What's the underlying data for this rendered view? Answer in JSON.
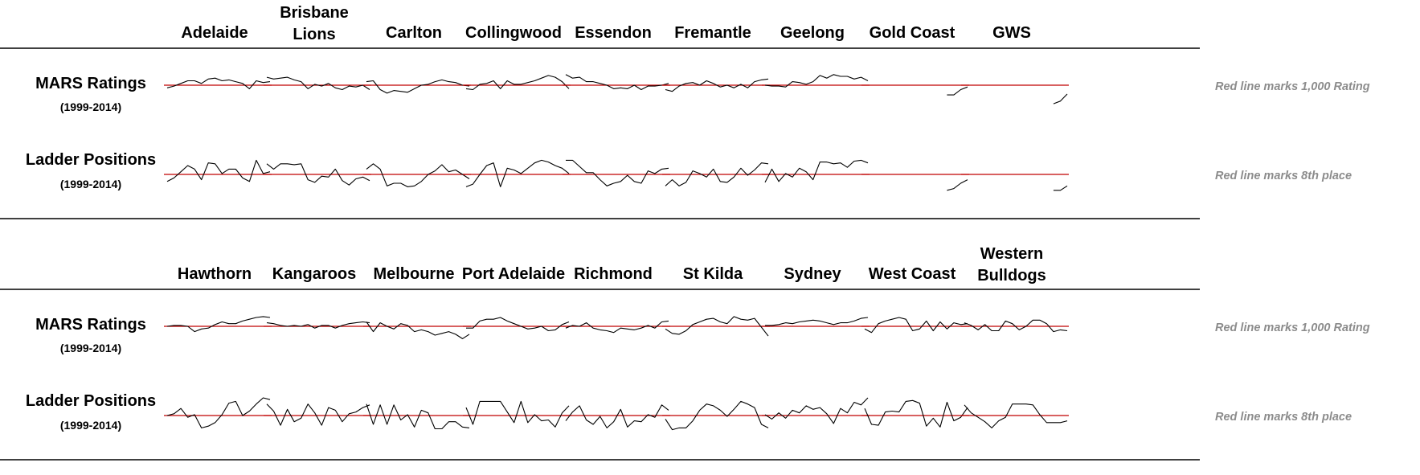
{
  "chart_data": {
    "type": "line",
    "years": [
      1999,
      2000,
      2001,
      2002,
      2003,
      2004,
      2005,
      2006,
      2007,
      2008,
      2009,
      2010,
      2011,
      2012,
      2013,
      2014
    ],
    "row_labels": {
      "mars": {
        "title": "MARS Ratings",
        "subtitle": "(1999-2014)"
      },
      "ladder": {
        "title": "Ladder Positions",
        "subtitle": "(1999-2014)"
      }
    },
    "notes": {
      "mars": "Red line marks 1,000 Rating",
      "ladder": "Red line marks 8th place"
    },
    "colors": {
      "line": "#000000",
      "reference": "#c00000",
      "rule": "#000000",
      "note": "#8c8c8c"
    },
    "panels": [
      {
        "teams": [
          {
            "name": [
              "Adelaide"
            ],
            "mars": [
              -0.3,
              -0.1,
              0.2,
              0.5,
              0.5,
              0.2,
              0.7,
              0.8,
              0.5,
              0.6,
              0.4,
              0.2,
              -0.4,
              0.5,
              0.3,
              0.4
            ],
            "ladder": [
              -0.8,
              -0.4,
              0.3,
              1.0,
              0.6,
              -0.6,
              1.3,
              1.2,
              0.1,
              0.6,
              0.6,
              -0.4,
              -0.8,
              1.6,
              0.1,
              0.3
            ]
          },
          {
            "name": [
              "Brisbane",
              "Lions"
            ],
            "mars": [
              0.9,
              0.7,
              0.8,
              0.9,
              0.6,
              0.4,
              -0.4,
              0.1,
              -0.1,
              0.2,
              -0.3,
              -0.5,
              -0.1,
              -0.2,
              0.0,
              -0.5
            ],
            "ladder": [
              1.2,
              0.6,
              1.2,
              1.2,
              1.1,
              1.2,
              -0.6,
              -0.9,
              -0.2,
              -0.3,
              0.6,
              -0.7,
              -1.2,
              -0.5,
              -0.3,
              -0.7
            ]
          },
          {
            "name": [
              "Carlton"
            ],
            "mars": [
              0.4,
              0.5,
              -0.5,
              -0.9,
              -0.6,
              -0.7,
              -0.8,
              -0.4,
              0.0,
              0.1,
              0.4,
              0.6,
              0.4,
              0.3,
              0.0,
              -0.1
            ],
            "ladder": [
              0.6,
              1.2,
              0.6,
              -1.3,
              -1.0,
              -1.0,
              -1.4,
              -1.3,
              -0.8,
              0.0,
              0.4,
              1.1,
              0.3,
              0.5,
              0.0,
              -0.5
            ]
          },
          {
            "name": [
              "Collingwood"
            ],
            "mars": [
              -0.4,
              -0.5,
              0.1,
              0.2,
              0.5,
              -0.4,
              0.5,
              0.1,
              0.1,
              0.3,
              0.5,
              0.8,
              1.1,
              0.9,
              0.4,
              -0.4
            ],
            "ladder": [
              -1.4,
              -1.1,
              0.0,
              1.0,
              1.3,
              -1.4,
              0.7,
              0.5,
              0.1,
              0.7,
              1.3,
              1.6,
              1.4,
              1.0,
              0.7,
              0.1
            ]
          },
          {
            "name": [
              "Essendon"
            ],
            "mars": [
              1.2,
              0.8,
              0.9,
              0.4,
              0.4,
              0.2,
              0.0,
              -0.4,
              -0.3,
              -0.4,
              0.0,
              -0.5,
              -0.1,
              -0.1,
              0.0,
              0.2
            ],
            "ladder": [
              1.6,
              1.6,
              0.9,
              0.2,
              0.2,
              -0.6,
              -1.3,
              -1.0,
              -0.8,
              -0.1,
              -0.8,
              -1.0,
              0.4,
              0.1,
              0.6,
              0.7
            ]
          },
          {
            "name": [
              "Fremantle"
            ],
            "mars": [
              -0.5,
              -0.7,
              -0.1,
              0.2,
              0.3,
              0.0,
              0.5,
              0.2,
              -0.2,
              0.0,
              -0.3,
              0.1,
              -0.3,
              0.4,
              0.6,
              0.7
            ],
            "ladder": [
              -1.3,
              -0.6,
              -1.3,
              -0.9,
              0.4,
              0.1,
              -0.3,
              0.6,
              -0.8,
              -0.9,
              -0.3,
              0.7,
              -0.1,
              0.5,
              1.3,
              1.2
            ]
          },
          {
            "name": [
              "Geelong"
            ],
            "mars": [
              0.0,
              -0.1,
              -0.1,
              -0.2,
              0.4,
              0.3,
              0.1,
              0.4,
              1.1,
              0.8,
              1.2,
              1.0,
              1.0,
              0.7,
              0.9,
              0.5
            ],
            "ladder": [
              -0.9,
              0.6,
              -0.8,
              0.1,
              -0.3,
              0.7,
              0.3,
              -0.6,
              1.4,
              1.4,
              1.2,
              1.3,
              0.8,
              1.5,
              1.6,
              1.3
            ]
          },
          {
            "name": [
              "Gold Coast"
            ],
            "mars": [
              null,
              null,
              null,
              null,
              null,
              null,
              null,
              null,
              null,
              null,
              null,
              null,
              -1.1,
              -1.1,
              -0.5,
              -0.2
            ],
            "ladder": [
              null,
              null,
              null,
              null,
              null,
              null,
              null,
              null,
              null,
              null,
              null,
              null,
              -1.8,
              -1.6,
              -1.0,
              -0.6
            ]
          },
          {
            "name": [
              "GWS"
            ],
            "mars": [
              null,
              null,
              null,
              null,
              null,
              null,
              null,
              null,
              null,
              null,
              null,
              null,
              null,
              -2.1,
              -1.8,
              -1.0
            ],
            "ladder": [
              null,
              null,
              null,
              null,
              null,
              null,
              null,
              null,
              null,
              null,
              null,
              null,
              null,
              -1.8,
              -1.8,
              -1.3
            ]
          }
        ]
      },
      {
        "teams": [
          {
            "name": [
              "Hawthorn"
            ],
            "mars": [
              0.0,
              0.1,
              0.1,
              0.0,
              -0.6,
              -0.3,
              -0.2,
              0.2,
              0.5,
              0.3,
              0.3,
              0.6,
              0.8,
              1.0,
              1.1,
              1.0
            ],
            "ladder": [
              0.0,
              0.2,
              0.8,
              -0.2,
              0.1,
              -1.4,
              -1.2,
              -0.8,
              0.1,
              1.4,
              1.6,
              0.0,
              0.5,
              1.3,
              2.0,
              1.8
            ]
          },
          {
            "name": [
              "Kangaroos"
            ],
            "mars": [
              0.4,
              0.3,
              0.1,
              0.0,
              0.1,
              0.0,
              0.2,
              -0.2,
              0.1,
              0.1,
              -0.2,
              0.1,
              0.3,
              0.4,
              0.5,
              0.4
            ],
            "ladder": [
              1.3,
              0.5,
              -1.1,
              0.7,
              -0.7,
              -0.3,
              1.3,
              0.3,
              -1.1,
              0.9,
              0.6,
              -0.7,
              0.2,
              0.4,
              0.9,
              1.2
            ]
          },
          {
            "name": [
              "Melbourne"
            ],
            "mars": [
              0.5,
              -0.6,
              0.4,
              0.0,
              -0.3,
              0.3,
              0.1,
              -0.6,
              -0.4,
              -0.6,
              -1.0,
              -0.8,
              -0.6,
              -0.9,
              -1.4,
              -0.9
            ],
            "ladder": [
              1.3,
              -1.0,
              1.2,
              -1.0,
              1.2,
              -0.5,
              0.1,
              -1.3,
              0.6,
              0.3,
              -1.5,
              -1.5,
              -0.7,
              -0.7,
              -1.3,
              -1.4
            ]
          },
          {
            "name": [
              "Port Adelaide"
            ],
            "mars": [
              -0.2,
              -0.2,
              0.6,
              0.8,
              0.8,
              1.0,
              0.6,
              0.3,
              0.0,
              -0.3,
              -0.2,
              0.0,
              -0.5,
              -0.4,
              0.2,
              0.5
            ],
            "ladder": [
              0.9,
              -1.0,
              1.6,
              1.6,
              1.6,
              1.6,
              0.4,
              -0.8,
              1.6,
              -0.8,
              0.1,
              -0.6,
              -0.5,
              -1.3,
              0.3,
              1.1
            ]
          },
          {
            "name": [
              "Richmond"
            ],
            "mars": [
              -0.2,
              0.1,
              0.0,
              0.4,
              -0.2,
              -0.4,
              -0.5,
              -0.7,
              -0.2,
              -0.3,
              -0.4,
              -0.2,
              0.1,
              -0.2,
              0.5,
              0.6
            ],
            "ladder": [
              -0.6,
              0.4,
              1.1,
              -0.5,
              -1.0,
              -0.1,
              -1.4,
              -0.7,
              0.7,
              -1.3,
              -0.6,
              -0.7,
              0.1,
              -0.2,
              1.2,
              0.6
            ]
          },
          {
            "name": [
              "St Kilda"
            ],
            "mars": [
              -0.3,
              -0.8,
              -0.9,
              -0.5,
              0.2,
              0.5,
              0.8,
              0.9,
              0.5,
              0.3,
              1.1,
              0.8,
              0.7,
              0.9,
              -0.1,
              -1.1
            ],
            "ladder": [
              -0.4,
              -1.6,
              -1.4,
              -1.4,
              -0.6,
              0.6,
              1.3,
              1.1,
              0.6,
              -0.1,
              0.7,
              1.6,
              1.3,
              0.9,
              -1.0,
              -1.4
            ]
          },
          {
            "name": [
              "Sydney"
            ],
            "mars": [
              0.1,
              0.1,
              0.2,
              0.4,
              0.3,
              0.5,
              0.6,
              0.7,
              0.6,
              0.4,
              0.2,
              0.4,
              0.4,
              0.6,
              0.9,
              1.0
            ],
            "ladder": [
              0.1,
              -0.4,
              0.3,
              -0.3,
              0.6,
              0.3,
              1.1,
              0.7,
              0.9,
              0.2,
              -0.9,
              0.8,
              0.3,
              1.5,
              1.2,
              2.0
            ]
          },
          {
            "name": [
              "West Coast"
            ],
            "mars": [
              -0.3,
              -0.7,
              0.3,
              0.6,
              0.8,
              1.0,
              0.8,
              -0.5,
              -0.3,
              0.6,
              -0.5,
              0.5,
              -0.3,
              0.4,
              0.2,
              0.3
            ],
            "ladder": [
              0.8,
              -1.0,
              -1.1,
              0.4,
              0.5,
              0.4,
              1.6,
              1.7,
              1.4,
              -1.2,
              -0.3,
              -1.3,
              1.5,
              -0.6,
              -0.2,
              0.9
            ]
          },
          {
            "name": [
              "Western",
              "Bulldogs"
            ],
            "mars": [
              0.4,
              0.1,
              -0.4,
              0.2,
              -0.5,
              -0.5,
              0.6,
              0.3,
              -0.4,
              0.0,
              0.7,
              0.7,
              0.3,
              -0.6,
              -0.4,
              -0.5
            ],
            "ladder": [
              1.2,
              0.3,
              -0.2,
              -0.7,
              -1.4,
              -0.6,
              -0.2,
              1.3,
              1.3,
              1.3,
              1.2,
              0.1,
              -0.8,
              -0.8,
              -0.8,
              -0.6
            ]
          }
        ]
      }
    ]
  }
}
